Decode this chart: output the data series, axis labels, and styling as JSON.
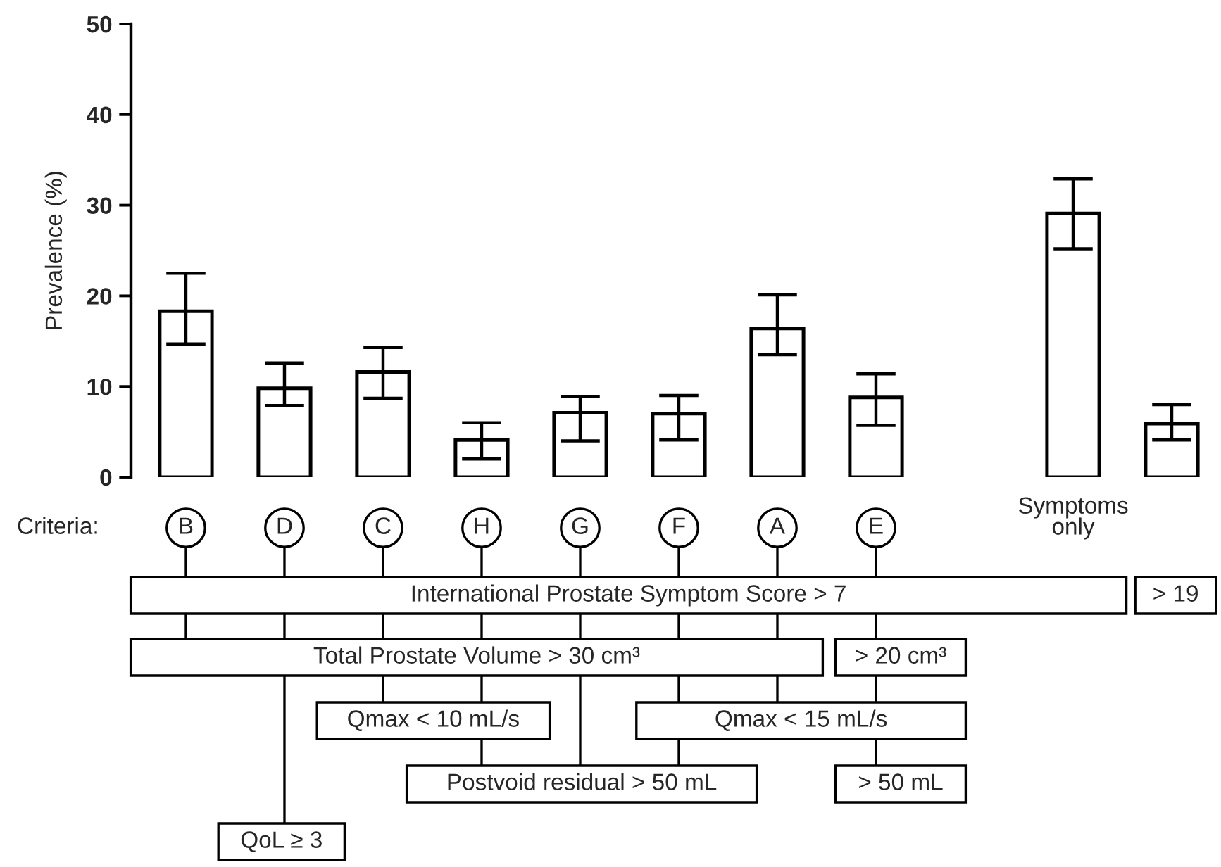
{
  "chart_data": {
    "type": "bar",
    "ylabel": "Prevalence (%)",
    "categories": [
      "B",
      "D",
      "C",
      "H",
      "G",
      "F",
      "A",
      "E",
      null,
      "Symptoms\nonly",
      null
    ],
    "values": [
      18.3,
      9.8,
      11.6,
      4.1,
      7.1,
      7.0,
      16.4,
      8.8,
      null,
      29.1,
      5.9
    ],
    "errors": [
      [
        14.7,
        22.5
      ],
      [
        7.9,
        12.6
      ],
      [
        8.7,
        14.3
      ],
      [
        2.0,
        6.0
      ],
      [
        4.0,
        8.9
      ],
      [
        4.1,
        9.0
      ],
      [
        13.5,
        20.1
      ],
      [
        5.7,
        11.4
      ],
      null,
      [
        25.2,
        32.9
      ],
      [
        4.1,
        8.0
      ]
    ],
    "color": "#ffffff",
    "ylim": [
      0,
      50
    ],
    "yticks": [
      0,
      10,
      20,
      30,
      40,
      50
    ],
    "grid": false,
    "annotations": [
      "Criteria:",
      "International Prostate Symptom Score > 7",
      "> 19",
      "Total Prostate Volume > 30 cm³",
      "> 20 cm³",
      "Qmax < 10 mL/s",
      "Qmax < 15 mL/s",
      "Postvoid residual > 50 mL",
      "> 50 mL",
      "QoL ≥ 3"
    ]
  }
}
